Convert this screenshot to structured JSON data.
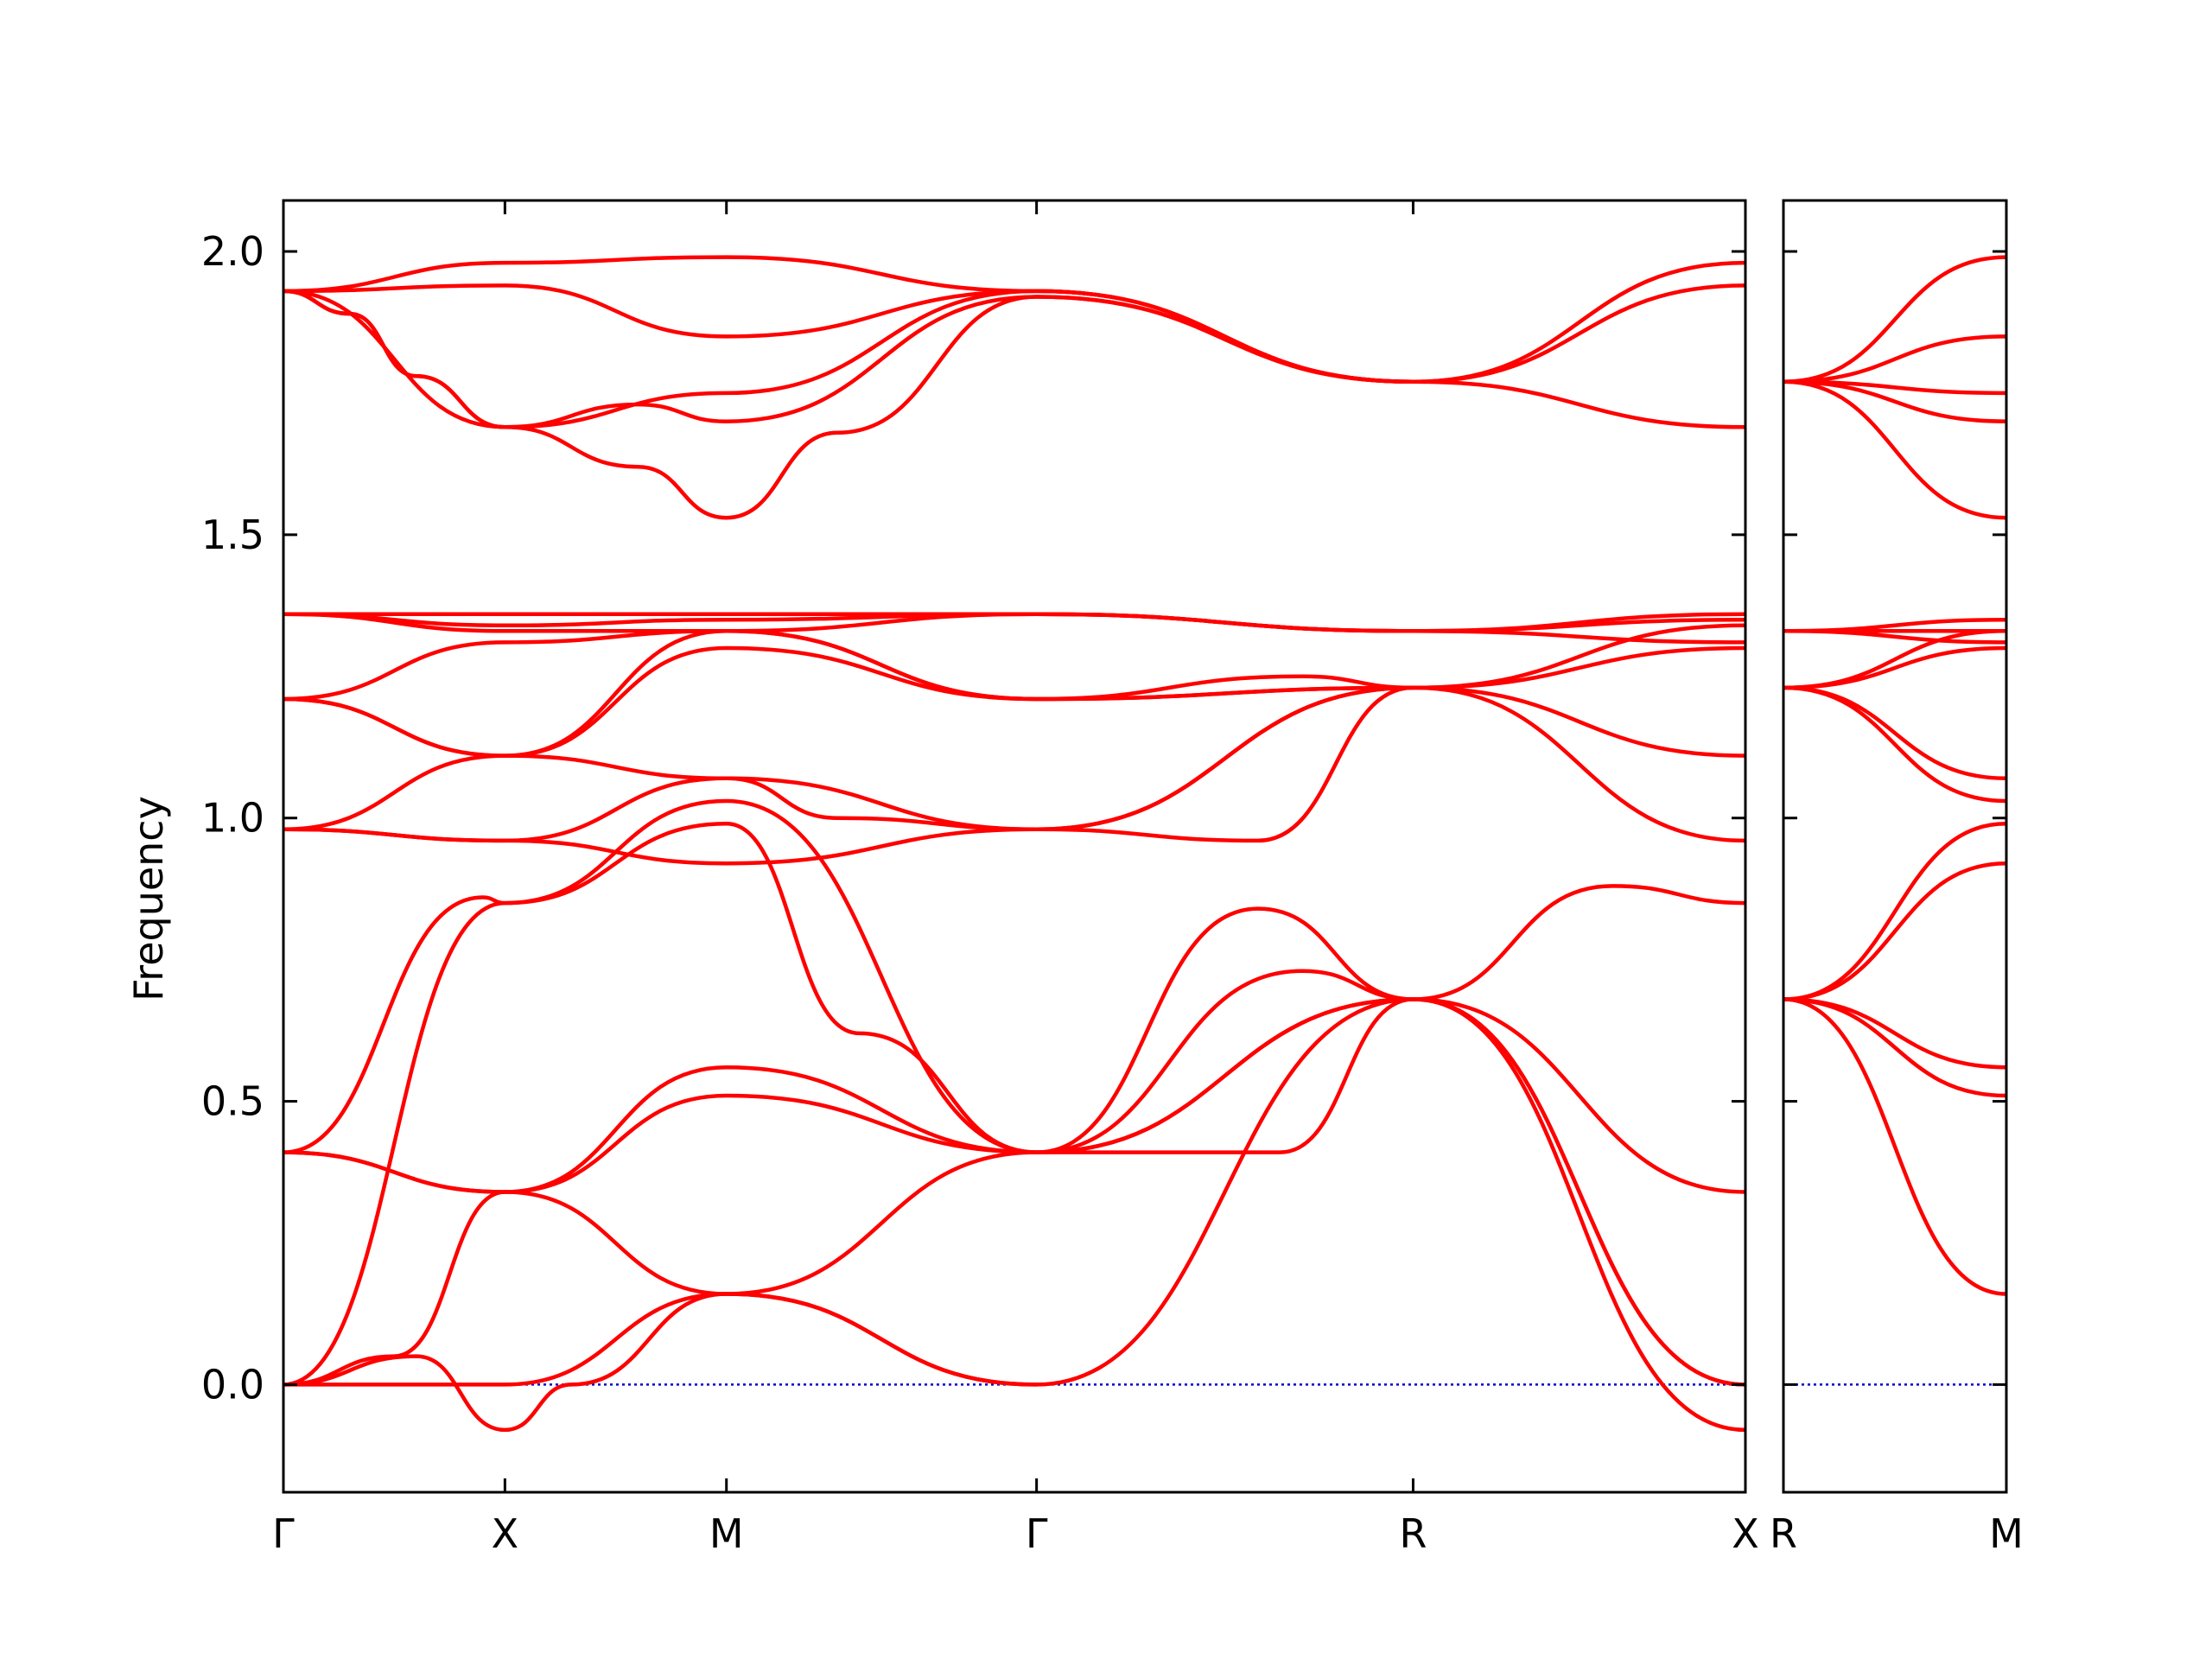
{
  "chart_data": {
    "type": "line",
    "ylabel": "Frequency",
    "ylim": [
      -0.19,
      2.09
    ],
    "yticks": [
      {
        "v": 0,
        "label": "0.0"
      },
      {
        "v": 0.5,
        "label": "0.5"
      },
      {
        "v": 1,
        "label": "1.0"
      },
      {
        "v": 1.5,
        "label": "1.5"
      },
      {
        "v": 2,
        "label": "2.0"
      }
    ],
    "reference_line": {
      "y": 0,
      "color": "#0000cc",
      "style": "dotted"
    },
    "band_color": "#ff0000",
    "panels": [
      {
        "xlim": [
          0,
          6.6
        ],
        "xticks": [
          {
            "x": 0,
            "label": "Γ"
          },
          {
            "x": 1.0,
            "label": "X"
          },
          {
            "x": 2.0,
            "label": "M"
          },
          {
            "x": 3.4,
            "label": "Γ"
          },
          {
            "x": 5.1,
            "label": "R"
          },
          {
            "x": 6.6,
            "label": "X"
          }
        ],
        "series": [
          {
            "x": [
              0,
              1,
              2,
              3.4,
              5.1,
              6.6
            ],
            "y": [
              1.93,
              1.98,
              1.99,
              1.93,
              1.77,
              1.98
            ]
          },
          {
            "x": [
              0,
              1,
              2,
              3.4,
              5.1,
              6.6
            ],
            "y": [
              1.93,
              1.94,
              1.85,
              1.93,
              1.77,
              1.94
            ]
          },
          {
            "x": [
              0,
              0.3,
              0.6,
              1,
              2,
              3.4,
              5.1,
              6.6
            ],
            "y": [
              1.93,
              1.89,
              1.78,
              1.69,
              1.75,
              1.93,
              1.77,
              1.69
            ]
          },
          {
            "x": [
              0,
              0.3,
              0.6,
              1,
              1.6,
              2,
              3.4,
              5.1
            ],
            "y": [
              1.93,
              1.89,
              1.78,
              1.69,
              1.73,
              1.7,
              1.92,
              1.77
            ]
          },
          {
            "x": [
              0,
              1,
              1.6,
              2,
              2.5,
              3.4,
              5.1
            ],
            "y": [
              1.93,
              1.69,
              1.62,
              1.53,
              1.68,
              1.92,
              1.77
            ]
          },
          {
            "x": [
              0,
              1,
              2,
              3.4,
              5.1,
              6.6
            ],
            "y": [
              1.36,
              1.36,
              1.36,
              1.36,
              1.33,
              1.36
            ]
          },
          {
            "x": [
              0,
              1,
              2,
              3.4,
              5.1,
              6.6
            ],
            "y": [
              1.36,
              1.34,
              1.35,
              1.36,
              1.33,
              1.35
            ]
          },
          {
            "x": [
              0,
              1,
              2,
              3.4,
              5.1,
              6.6
            ],
            "y": [
              1.36,
              1.33,
              1.33,
              1.36,
              1.33,
              1.31
            ]
          },
          {
            "x": [
              0,
              1,
              2,
              3.4,
              5.1,
              6.6
            ],
            "y": [
              1.21,
              1.31,
              1.33,
              1.21,
              1.23,
              1.34
            ]
          },
          {
            "x": [
              0,
              1,
              2,
              3.4,
              4.6,
              5.1,
              6.6
            ],
            "y": [
              1.21,
              1.11,
              1.33,
              1.21,
              1.25,
              1.23,
              1.11
            ]
          },
          {
            "x": [
              0,
              1,
              2,
              3.4,
              5.1,
              6.6
            ],
            "y": [
              1.21,
              1.11,
              1.3,
              1.21,
              1.23,
              0.96
            ]
          },
          {
            "x": [
              0,
              1,
              2,
              3.4,
              5.1,
              6.6
            ],
            "y": [
              0.98,
              1.11,
              1.07,
              0.98,
              1.23,
              1.3
            ]
          },
          {
            "x": [
              0,
              1,
              2,
              2.5,
              3.4,
              4.4,
              5.1
            ],
            "y": [
              0.98,
              0.96,
              1.07,
              1.0,
              0.98,
              0.96,
              1.23
            ]
          },
          {
            "x": [
              0,
              1,
              2,
              3.4,
              5.1
            ],
            "y": [
              0.98,
              0.96,
              0.92,
              0.98,
              1.23
            ]
          },
          {
            "x": [
              0,
              0.9,
              1,
              2,
              2.6,
              3.4,
              4.4,
              5.1,
              6.0,
              6.6
            ],
            "y": [
              0.41,
              0.86,
              0.85,
              0.99,
              0.62,
              0.41,
              0.84,
              0.68,
              0.88,
              0.85
            ]
          },
          {
            "x": [
              0,
              1,
              2,
              3.4,
              4.6,
              5.1,
              6.6
            ],
            "y": [
              0.0,
              0.85,
              1.03,
              0.41,
              0.73,
              0.68,
              0.34
            ]
          },
          {
            "x": [
              0,
              1,
              2,
              3.4,
              5.1,
              6.6
            ],
            "y": [
              0.41,
              0.34,
              0.56,
              0.41,
              0.68,
              0.0
            ]
          },
          {
            "x": [
              0,
              1,
              2,
              3.4,
              4.5,
              5.1,
              6.6
            ],
            "y": [
              0.41,
              0.34,
              0.51,
              0.41,
              0.41,
              0.68,
              0.0
            ]
          },
          {
            "x": [
              0,
              0.6,
              1,
              1.3,
              2,
              3.4,
              5.1,
              6.6
            ],
            "y": [
              0.0,
              0.05,
              -0.08,
              0.0,
              0.16,
              0.0,
              0.68,
              -0.08
            ]
          },
          {
            "x": [
              0,
              0.5,
              1,
              2,
              3.4
            ],
            "y": [
              0.0,
              0.05,
              0.34,
              0.16,
              0.0
            ]
          },
          {
            "x": [
              0,
              1,
              2,
              3.4,
              5.1
            ],
            "y": [
              0.0,
              0.0,
              0.16,
              0.41,
              0.68
            ]
          }
        ]
      },
      {
        "xlim": [
          0,
          1.0
        ],
        "xticks": [
          {
            "x": 0,
            "label": "R"
          },
          {
            "x": 1.0,
            "label": "M"
          }
        ],
        "series": [
          {
            "x": [
              0,
              1
            ],
            "y": [
              1.77,
              1.99
            ]
          },
          {
            "x": [
              0,
              1
            ],
            "y": [
              1.77,
              1.85
            ]
          },
          {
            "x": [
              0,
              1
            ],
            "y": [
              1.77,
              1.75
            ]
          },
          {
            "x": [
              0,
              1
            ],
            "y": [
              1.77,
              1.7
            ]
          },
          {
            "x": [
              0,
              1
            ],
            "y": [
              1.77,
              1.53
            ]
          },
          {
            "x": [
              0,
              1
            ],
            "y": [
              1.33,
              1.35
            ]
          },
          {
            "x": [
              0,
              1
            ],
            "y": [
              1.33,
              1.33
            ]
          },
          {
            "x": [
              0,
              1
            ],
            "y": [
              1.33,
              1.31
            ]
          },
          {
            "x": [
              0,
              1
            ],
            "y": [
              1.23,
              1.33
            ]
          },
          {
            "x": [
              0,
              1
            ],
            "y": [
              1.23,
              1.3
            ]
          },
          {
            "x": [
              0,
              1
            ],
            "y": [
              1.23,
              1.07
            ]
          },
          {
            "x": [
              0,
              1
            ],
            "y": [
              1.23,
              1.03
            ]
          },
          {
            "x": [
              0,
              1
            ],
            "y": [
              0.68,
              0.99
            ]
          },
          {
            "x": [
              0,
              1
            ],
            "y": [
              0.68,
              0.92
            ]
          },
          {
            "x": [
              0,
              1
            ],
            "y": [
              0.68,
              0.56
            ]
          },
          {
            "x": [
              0,
              1
            ],
            "y": [
              0.68,
              0.51
            ]
          },
          {
            "x": [
              0,
              1
            ],
            "y": [
              0.68,
              0.16
            ]
          }
        ]
      }
    ]
  }
}
